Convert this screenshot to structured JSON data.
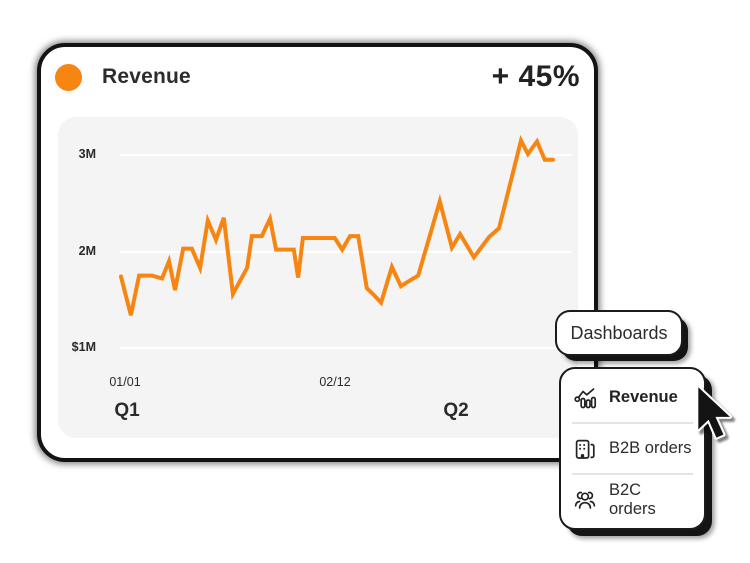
{
  "card": {
    "title": "Revenue",
    "delta": "+ 45%",
    "accent_color": "#F68511",
    "text_color": "#2c2c2c"
  },
  "chart_data": {
    "type": "line",
    "title": "Revenue",
    "series_name": "Revenue",
    "unit": "millions",
    "line_color": "#F68511",
    "grid_color": "#ffffff",
    "panel_color": "#f4f4f4",
    "grid": true,
    "ylim": [
      1.2,
      3.3
    ],
    "y_ticks": [
      {
        "label": "3M",
        "value": 3
      },
      {
        "label": "2M",
        "value": 2
      },
      {
        "label": "$1M",
        "value": 1
      }
    ],
    "x_tick_labels": [
      {
        "label": "01/01",
        "f": 0.01
      },
      {
        "label": "02/12",
        "f": 0.5
      }
    ],
    "quarter_labels": [
      {
        "label": "Q1",
        "f": 0.015
      },
      {
        "label": "Q2",
        "f": 0.775
      }
    ],
    "points": [
      [
        0.0,
        1.74
      ],
      [
        0.023,
        1.34
      ],
      [
        0.042,
        1.75
      ],
      [
        0.072,
        1.75
      ],
      [
        0.095,
        1.72
      ],
      [
        0.111,
        1.9
      ],
      [
        0.125,
        1.6
      ],
      [
        0.144,
        2.03
      ],
      [
        0.164,
        2.03
      ],
      [
        0.183,
        1.83
      ],
      [
        0.201,
        2.32
      ],
      [
        0.22,
        2.12
      ],
      [
        0.238,
        2.35
      ],
      [
        0.259,
        1.56
      ],
      [
        0.292,
        1.83
      ],
      [
        0.303,
        2.16
      ],
      [
        0.326,
        2.16
      ],
      [
        0.345,
        2.34
      ],
      [
        0.359,
        2.02
      ],
      [
        0.4,
        2.02
      ],
      [
        0.41,
        1.73
      ],
      [
        0.421,
        2.14
      ],
      [
        0.495,
        2.14
      ],
      [
        0.512,
        2.02
      ],
      [
        0.53,
        2.16
      ],
      [
        0.549,
        2.16
      ],
      [
        0.569,
        1.62
      ],
      [
        0.583,
        1.56
      ],
      [
        0.602,
        1.47
      ],
      [
        0.627,
        1.84
      ],
      [
        0.648,
        1.64
      ],
      [
        0.669,
        1.7
      ],
      [
        0.688,
        1.75
      ],
      [
        0.738,
        2.52
      ],
      [
        0.766,
        2.04
      ],
      [
        0.785,
        2.18
      ],
      [
        0.817,
        1.94
      ],
      [
        0.852,
        2.15
      ],
      [
        0.875,
        2.24
      ],
      [
        0.926,
        3.15
      ],
      [
        0.942,
        3.01
      ],
      [
        0.963,
        3.14
      ],
      [
        0.981,
        2.95
      ],
      [
        1.0,
        2.95
      ]
    ]
  },
  "dropdown": {
    "trigger_label": "Dashboards",
    "items": [
      {
        "label": "Revenue",
        "icon": "bar-chart-trend-icon",
        "active": true
      },
      {
        "label": "B2B orders",
        "icon": "building-icon",
        "active": false
      },
      {
        "label": "B2C orders",
        "icon": "people-icon",
        "active": false
      }
    ]
  },
  "cursor": {
    "type": "arrow-pointer"
  }
}
